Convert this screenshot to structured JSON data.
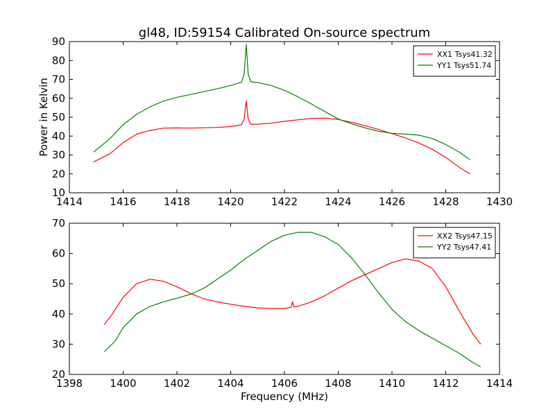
{
  "chart_data": [
    {
      "type": "line",
      "title": "gl48, ID:59154 Calibrated On-source spectrum",
      "xlabel": "",
      "ylabel": "Power in Kelvin",
      "xlim": [
        1414,
        1430
      ],
      "ylim": [
        10,
        90
      ],
      "xticks": [
        1414,
        1416,
        1418,
        1420,
        1422,
        1424,
        1426,
        1428,
        1430
      ],
      "yticks": [
        10,
        20,
        30,
        40,
        50,
        60,
        70,
        80,
        90
      ],
      "grid": false,
      "legend_position": "top-right",
      "series": [
        {
          "name": "XX1 Tsys41.32",
          "color": "#ff0000",
          "points": [
            [
              1414.9,
              26.3
            ],
            [
              1415.5,
              30.5
            ],
            [
              1416.0,
              36.5
            ],
            [
              1416.5,
              41.0
            ],
            [
              1417.0,
              43.0
            ],
            [
              1417.5,
              44.2
            ],
            [
              1418.0,
              44.3
            ],
            [
              1418.5,
              44.2
            ],
            [
              1419.0,
              44.4
            ],
            [
              1419.5,
              44.6
            ],
            [
              1420.0,
              45.0
            ],
            [
              1420.4,
              46.0
            ],
            [
              1420.5,
              49.0
            ],
            [
              1420.58,
              58.5
            ],
            [
              1420.65,
              49.0
            ],
            [
              1420.75,
              46.2
            ],
            [
              1421.0,
              46.3
            ],
            [
              1421.5,
              46.8
            ],
            [
              1422.0,
              47.8
            ],
            [
              1422.5,
              48.6
            ],
            [
              1423.0,
              49.3
            ],
            [
              1423.5,
              49.5
            ],
            [
              1424.0,
              48.8
            ],
            [
              1424.5,
              47.3
            ],
            [
              1425.0,
              45.5
            ],
            [
              1425.5,
              43.5
            ],
            [
              1426.0,
              41.3
            ],
            [
              1426.5,
              39.0
            ],
            [
              1427.0,
              36.3
            ],
            [
              1427.5,
              33.0
            ],
            [
              1428.0,
              28.7
            ],
            [
              1428.5,
              23.5
            ],
            [
              1428.9,
              20.0
            ]
          ]
        },
        {
          "name": "YY1 Tsys51.74",
          "color": "#008000",
          "points": [
            [
              1414.9,
              31.5
            ],
            [
              1415.5,
              38.5
            ],
            [
              1416.0,
              46.0
            ],
            [
              1416.5,
              51.5
            ],
            [
              1417.0,
              55.5
            ],
            [
              1417.5,
              58.5
            ],
            [
              1418.0,
              60.5
            ],
            [
              1418.5,
              62.0
            ],
            [
              1419.0,
              63.5
            ],
            [
              1419.5,
              65.0
            ],
            [
              1420.0,
              66.8
            ],
            [
              1420.4,
              68.5
            ],
            [
              1420.5,
              73.0
            ],
            [
              1420.58,
              88.5
            ],
            [
              1420.65,
              73.0
            ],
            [
              1420.75,
              68.7
            ],
            [
              1421.0,
              68.3
            ],
            [
              1421.5,
              66.8
            ],
            [
              1422.0,
              64.2
            ],
            [
              1422.5,
              60.8
            ],
            [
              1423.0,
              57.0
            ],
            [
              1423.5,
              53.0
            ],
            [
              1424.0,
              49.0
            ],
            [
              1424.5,
              46.5
            ],
            [
              1425.0,
              44.3
            ],
            [
              1425.5,
              42.5
            ],
            [
              1426.0,
              41.5
            ],
            [
              1426.5,
              41.0
            ],
            [
              1427.0,
              40.5
            ],
            [
              1427.5,
              38.7
            ],
            [
              1428.0,
              35.5
            ],
            [
              1428.5,
              31.5
            ],
            [
              1428.9,
              27.5
            ]
          ]
        }
      ]
    },
    {
      "type": "line",
      "title": "",
      "xlabel": "Frequency (MHz)",
      "ylabel": "",
      "xlim": [
        1398,
        1414
      ],
      "ylim": [
        20,
        70
      ],
      "xticks": [
        1398,
        1400,
        1402,
        1404,
        1406,
        1408,
        1410,
        1412,
        1414
      ],
      "yticks": [
        20,
        30,
        40,
        50,
        60,
        70
      ],
      "grid": false,
      "legend_position": "top-right",
      "series": [
        {
          "name": "XX2 Tsys47.15",
          "color": "#ff0000",
          "points": [
            [
              1399.3,
              36.5
            ],
            [
              1399.6,
              40.0
            ],
            [
              1400.0,
              45.5
            ],
            [
              1400.5,
              50.0
            ],
            [
              1401.0,
              51.5
            ],
            [
              1401.5,
              50.8
            ],
            [
              1402.0,
              49.0
            ],
            [
              1402.5,
              46.8
            ],
            [
              1403.0,
              45.0
            ],
            [
              1403.5,
              44.0
            ],
            [
              1404.0,
              43.2
            ],
            [
              1404.5,
              42.5
            ],
            [
              1405.0,
              42.0
            ],
            [
              1405.5,
              41.8
            ],
            [
              1406.0,
              41.8
            ],
            [
              1406.25,
              42.2
            ],
            [
              1406.3,
              44.0
            ],
            [
              1406.35,
              42.3
            ],
            [
              1406.5,
              42.5
            ],
            [
              1407.0,
              44.0
            ],
            [
              1407.5,
              46.0
            ],
            [
              1408.0,
              48.5
            ],
            [
              1408.5,
              51.0
            ],
            [
              1409.0,
              53.0
            ],
            [
              1409.5,
              55.0
            ],
            [
              1410.0,
              57.0
            ],
            [
              1410.5,
              58.2
            ],
            [
              1411.0,
              57.5
            ],
            [
              1411.5,
              55.0
            ],
            [
              1412.0,
              49.0
            ],
            [
              1412.5,
              41.0
            ],
            [
              1413.0,
              33.5
            ],
            [
              1413.3,
              30.0
            ]
          ]
        },
        {
          "name": "YY2 Tsys47.41",
          "color": "#008000",
          "points": [
            [
              1399.3,
              27.5
            ],
            [
              1399.7,
              31.0
            ],
            [
              1400.0,
              35.5
            ],
            [
              1400.5,
              40.0
            ],
            [
              1401.0,
              42.5
            ],
            [
              1401.5,
              44.0
            ],
            [
              1402.0,
              45.2
            ],
            [
              1402.5,
              46.5
            ],
            [
              1403.0,
              48.5
            ],
            [
              1403.5,
              51.5
            ],
            [
              1404.0,
              54.5
            ],
            [
              1404.5,
              58.0
            ],
            [
              1405.0,
              61.0
            ],
            [
              1405.5,
              64.0
            ],
            [
              1406.0,
              66.0
            ],
            [
              1406.5,
              67.0
            ],
            [
              1407.0,
              67.0
            ],
            [
              1407.5,
              65.5
            ],
            [
              1408.0,
              63.0
            ],
            [
              1408.5,
              58.5
            ],
            [
              1409.0,
              53.0
            ],
            [
              1409.5,
              47.0
            ],
            [
              1410.0,
              41.5
            ],
            [
              1410.5,
              37.5
            ],
            [
              1411.0,
              34.5
            ],
            [
              1411.5,
              32.0
            ],
            [
              1412.0,
              29.5
            ],
            [
              1412.5,
              27.0
            ],
            [
              1413.0,
              24.0
            ],
            [
              1413.3,
              22.5
            ]
          ]
        }
      ]
    }
  ]
}
